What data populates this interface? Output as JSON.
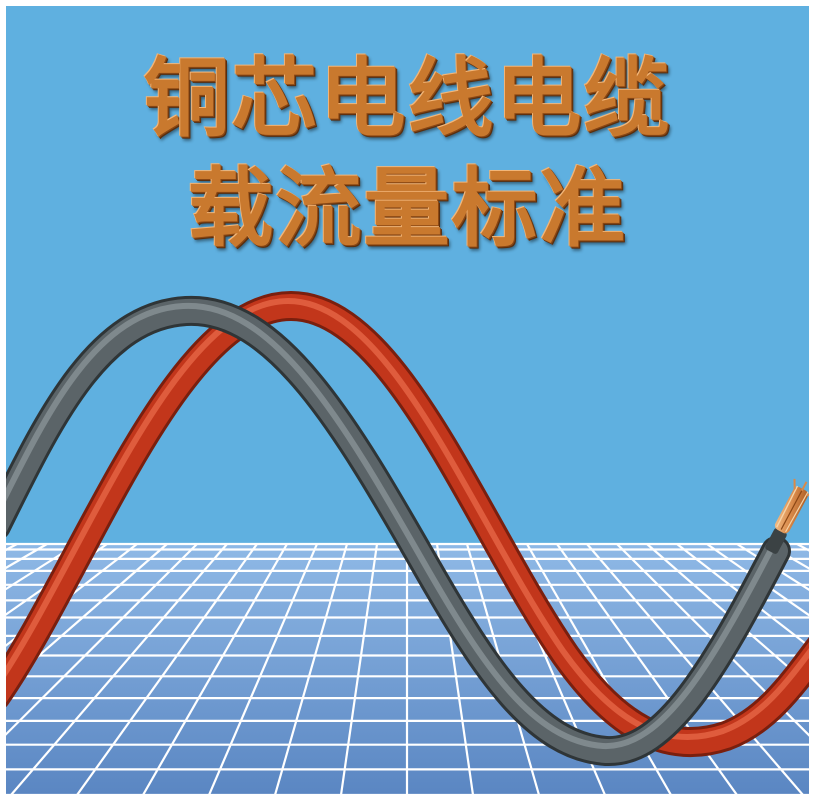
{
  "title": {
    "line1": "铜芯电线电缆",
    "line2": "载流量标准"
  },
  "colors": {
    "sky": "#5fb0e0",
    "floor": "#6b98cf",
    "grid": "#ffffff",
    "title_text": "#c9792e",
    "red_wire": "#c2361b",
    "grey_wire": "#5b6468",
    "copper": "#d98a4a"
  }
}
